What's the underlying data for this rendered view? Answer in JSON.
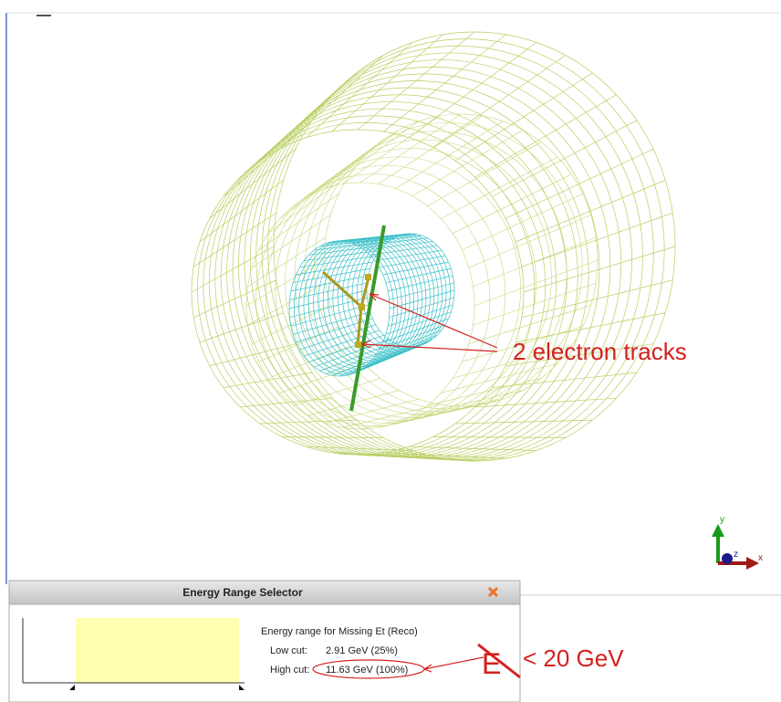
{
  "viewer": {
    "annotation": "2 electron tracks",
    "axes": {
      "y": "y",
      "z": "z",
      "x": "x"
    }
  },
  "dialog": {
    "title": "Energy Range Selector",
    "heading": "Energy range for Missing Et (Reco)",
    "low_cut": {
      "label": "Low cut:",
      "value": "2.91 GeV (25%)"
    },
    "high_cut": {
      "label": "High cut:",
      "value": "11.63 GeV (100%)"
    }
  },
  "handwritten": {
    "symbol": "E",
    "condition": "< 20 GeV"
  }
}
